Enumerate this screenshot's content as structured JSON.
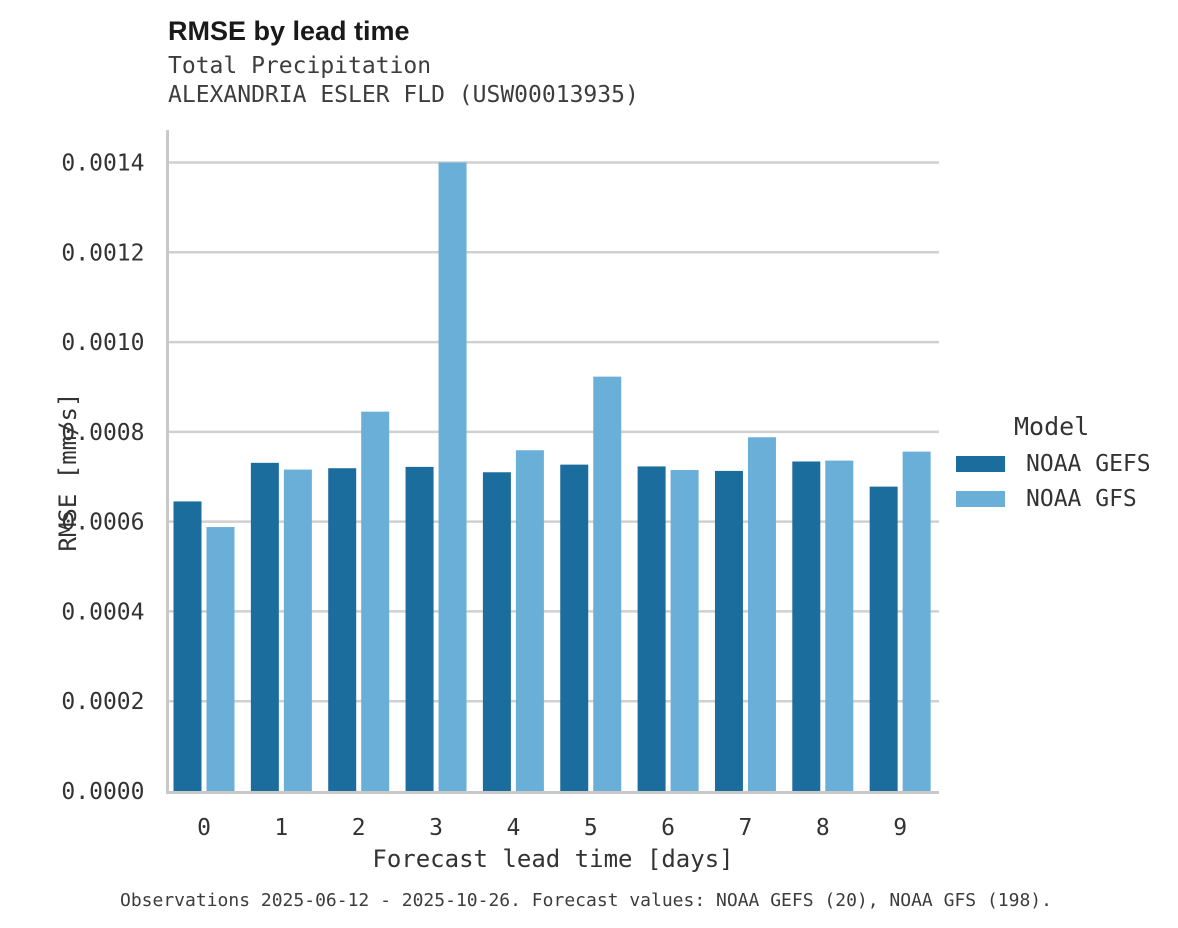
{
  "chart_data": {
    "type": "bar",
    "title": "RMSE by lead time",
    "subtitle": [
      "Total Precipitation",
      "ALEXANDRIA ESLER FLD (USW00013935)"
    ],
    "xlabel": "Forecast lead time [days]",
    "ylabel": "RMSE [mm/s]",
    "categories": [
      "0",
      "1",
      "2",
      "3",
      "4",
      "5",
      "6",
      "7",
      "8",
      "9"
    ],
    "series": [
      {
        "name": "NOAA GEFS",
        "color": "#1b6d9d",
        "values": [
          0.000645,
          0.000731,
          0.000719,
          0.000722,
          0.00071,
          0.000727,
          0.000723,
          0.000713,
          0.000734,
          0.000678
        ]
      },
      {
        "name": "NOAA GFS",
        "color": "#6aafd8",
        "values": [
          0.000588,
          0.000716,
          0.000845,
          0.0014,
          0.000759,
          0.000923,
          0.000715,
          0.000788,
          0.000736,
          0.000756
        ]
      }
    ],
    "ylim": [
      0,
      0.0014
    ],
    "yticks": [
      0.0,
      0.0002,
      0.0004,
      0.0006,
      0.0008,
      0.001,
      0.0012,
      0.0014
    ],
    "ytick_format_decimals": 4,
    "grid": "horizontal",
    "legend_title": "Model",
    "legend_position": "right",
    "caption": "Observations 2025-06-12 - 2025-10-26. Forecast values: NOAA GEFS (20), NOAA GFS (198).",
    "colors": {
      "grid": "#d0d0d0",
      "axis": "#c9c9c9",
      "text": "#333333"
    }
  }
}
